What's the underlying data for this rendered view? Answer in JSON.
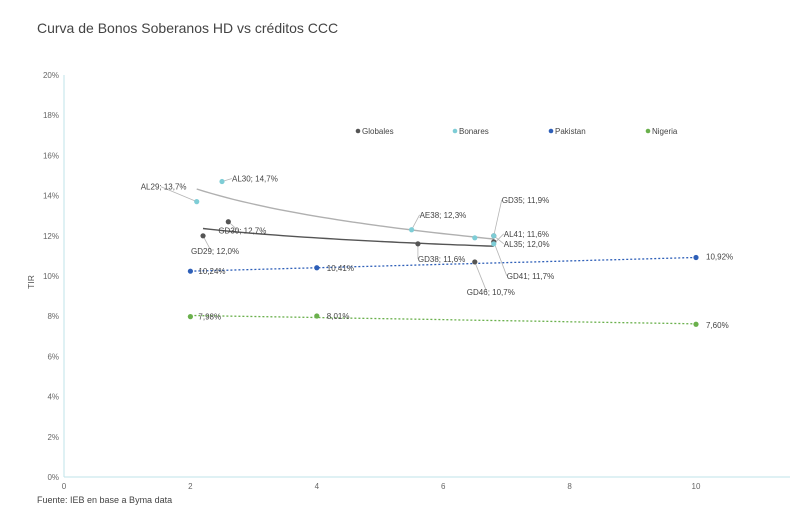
{
  "chart_data": {
    "type": "scatter",
    "title": "Curva de Bonos Soberanos HD vs créditos CCC",
    "source": "Fuente: IEB en base a Byma data",
    "xlabel": "",
    "ylabel": "TIR",
    "xlim": [
      0,
      11.5
    ],
    "ylim": [
      0,
      20
    ],
    "x_ticks": [
      0,
      2,
      4,
      6,
      8,
      10
    ],
    "y_ticks": [
      0,
      2,
      4,
      6,
      8,
      10,
      12,
      14,
      16,
      18,
      20
    ],
    "y_tick_labels": [
      "0%",
      "2%",
      "4%",
      "6%",
      "8%",
      "10%",
      "12%",
      "14%",
      "16%",
      "18%",
      "20%"
    ],
    "grid": false,
    "legend_position": "top",
    "series": [
      {
        "name": "Globales",
        "color": "#555555",
        "points": [
          {
            "x": 2.2,
            "y": 12.0,
            "label": "GD29; 12,0%"
          },
          {
            "x": 2.6,
            "y": 12.7,
            "label": "GD30; 12,7%"
          },
          {
            "x": 5.6,
            "y": 11.6,
            "label": "GD38; 11,6%"
          },
          {
            "x": 6.5,
            "y": 10.7,
            "label": "GD46; 10,7%"
          },
          {
            "x": 6.8,
            "y": 11.7,
            "label": "GD41; 11,7%"
          },
          {
            "x": 6.8,
            "y": 12.0,
            "label": "GD35; 11,9%"
          }
        ]
      },
      {
        "name": "Bonares",
        "color": "#7ecdd6",
        "points": [
          {
            "x": 2.1,
            "y": 13.7,
            "label": "AL29; 13,7%"
          },
          {
            "x": 2.5,
            "y": 14.7,
            "label": "AL30; 14,7%"
          },
          {
            "x": 5.5,
            "y": 12.3,
            "label": "AE38; 12,3%"
          },
          {
            "x": 6.5,
            "y": 11.9,
            "label": ""
          },
          {
            "x": 6.8,
            "y": 11.6,
            "label": "AL41; 11,6%"
          },
          {
            "x": 6.8,
            "y": 12.0,
            "label": "AL35; 12,0%"
          }
        ]
      },
      {
        "name": "Pakistan",
        "color": "#2e5fb8",
        "points": [
          {
            "x": 2.0,
            "y": 10.24,
            "label": "10,24%"
          },
          {
            "x": 4.0,
            "y": 10.41,
            "label": "10,41%"
          },
          {
            "x": 10.0,
            "y": 10.92,
            "label": "10,92%"
          }
        ]
      },
      {
        "name": "Nigeria",
        "color": "#6ab04c",
        "points": [
          {
            "x": 2.0,
            "y": 7.98,
            "label": "7,98%"
          },
          {
            "x": 4.0,
            "y": 8.01,
            "label": "8,01%"
          },
          {
            "x": 10.0,
            "y": 7.6,
            "label": "7,60%"
          }
        ]
      }
    ]
  }
}
